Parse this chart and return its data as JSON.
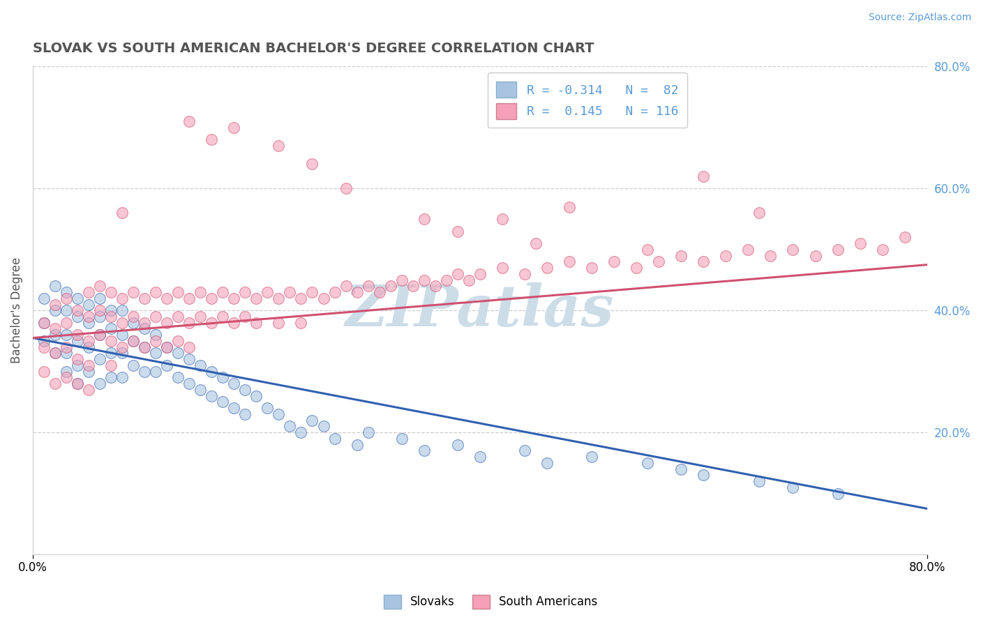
{
  "title": "SLOVAK VS SOUTH AMERICAN BACHELOR'S DEGREE CORRELATION CHART",
  "source": "Source: ZipAtlas.com",
  "ylabel": "Bachelor's Degree",
  "xlim": [
    0.0,
    0.8
  ],
  "ylim": [
    0.0,
    0.8
  ],
  "yticks_right": [
    0.2,
    0.4,
    0.6,
    0.8
  ],
  "ytick_right_labels": [
    "20.0%",
    "40.0%",
    "60.0%",
    "80.0%"
  ],
  "r_slovak": -0.314,
  "n_slovak": 82,
  "r_sa": 0.145,
  "n_sa": 116,
  "color_slovak": "#a8c4e0",
  "color_south_american": "#f4a0b8",
  "color_line_slovak": "#3060b0",
  "color_line_sa": "#d05070",
  "watermark": "ZIPatlas",
  "watermark_color": "#ccdde8",
  "grid_color": "#cccccc",
  "title_color": "#555555",
  "label_color": "#5b9bd5",
  "source_color": "#5b9bd5",
  "sk_x": [
    0.01,
    0.01,
    0.01,
    0.02,
    0.02,
    0.02,
    0.02,
    0.03,
    0.03,
    0.03,
    0.03,
    0.03,
    0.04,
    0.04,
    0.04,
    0.04,
    0.04,
    0.05,
    0.05,
    0.05,
    0.05,
    0.06,
    0.06,
    0.06,
    0.06,
    0.06,
    0.07,
    0.07,
    0.07,
    0.07,
    0.08,
    0.08,
    0.08,
    0.08,
    0.09,
    0.09,
    0.09,
    0.1,
    0.1,
    0.1,
    0.11,
    0.11,
    0.11,
    0.12,
    0.12,
    0.13,
    0.13,
    0.14,
    0.14,
    0.15,
    0.15,
    0.16,
    0.16,
    0.17,
    0.17,
    0.18,
    0.18,
    0.19,
    0.19,
    0.2,
    0.21,
    0.22,
    0.23,
    0.24,
    0.25,
    0.26,
    0.27,
    0.29,
    0.3,
    0.33,
    0.35,
    0.38,
    0.4,
    0.44,
    0.46,
    0.5,
    0.55,
    0.58,
    0.6,
    0.65,
    0.68,
    0.72
  ],
  "sk_y": [
    0.42,
    0.38,
    0.35,
    0.44,
    0.4,
    0.36,
    0.33,
    0.43,
    0.4,
    0.36,
    0.33,
    0.3,
    0.42,
    0.39,
    0.35,
    0.31,
    0.28,
    0.41,
    0.38,
    0.34,
    0.3,
    0.42,
    0.39,
    0.36,
    0.32,
    0.28,
    0.4,
    0.37,
    0.33,
    0.29,
    0.4,
    0.36,
    0.33,
    0.29,
    0.38,
    0.35,
    0.31,
    0.37,
    0.34,
    0.3,
    0.36,
    0.33,
    0.3,
    0.34,
    0.31,
    0.33,
    0.29,
    0.32,
    0.28,
    0.31,
    0.27,
    0.3,
    0.26,
    0.29,
    0.25,
    0.28,
    0.24,
    0.27,
    0.23,
    0.26,
    0.24,
    0.23,
    0.21,
    0.2,
    0.22,
    0.21,
    0.19,
    0.18,
    0.2,
    0.19,
    0.17,
    0.18,
    0.16,
    0.17,
    0.15,
    0.16,
    0.15,
    0.14,
    0.13,
    0.12,
    0.11,
    0.1
  ],
  "sa_x": [
    0.01,
    0.01,
    0.01,
    0.02,
    0.02,
    0.02,
    0.02,
    0.03,
    0.03,
    0.03,
    0.03,
    0.04,
    0.04,
    0.04,
    0.04,
    0.05,
    0.05,
    0.05,
    0.05,
    0.05,
    0.06,
    0.06,
    0.06,
    0.07,
    0.07,
    0.07,
    0.07,
    0.08,
    0.08,
    0.08,
    0.09,
    0.09,
    0.09,
    0.1,
    0.1,
    0.1,
    0.11,
    0.11,
    0.11,
    0.12,
    0.12,
    0.12,
    0.13,
    0.13,
    0.13,
    0.14,
    0.14,
    0.14,
    0.15,
    0.15,
    0.16,
    0.16,
    0.17,
    0.17,
    0.18,
    0.18,
    0.19,
    0.19,
    0.2,
    0.2,
    0.21,
    0.22,
    0.22,
    0.23,
    0.24,
    0.24,
    0.25,
    0.26,
    0.27,
    0.28,
    0.29,
    0.3,
    0.31,
    0.32,
    0.33,
    0.34,
    0.35,
    0.36,
    0.37,
    0.38,
    0.39,
    0.4,
    0.42,
    0.44,
    0.46,
    0.48,
    0.5,
    0.52,
    0.54,
    0.56,
    0.58,
    0.6,
    0.62,
    0.64,
    0.66,
    0.68,
    0.7,
    0.72,
    0.74,
    0.76,
    0.6,
    0.42,
    0.22,
    0.14,
    0.28,
    0.16,
    0.08,
    0.55,
    0.45,
    0.35,
    0.25,
    0.65,
    0.48,
    0.38,
    0.18,
    0.78
  ],
  "sa_y": [
    0.38,
    0.34,
    0.3,
    0.41,
    0.37,
    0.33,
    0.28,
    0.42,
    0.38,
    0.34,
    0.29,
    0.4,
    0.36,
    0.32,
    0.28,
    0.43,
    0.39,
    0.35,
    0.31,
    0.27,
    0.44,
    0.4,
    0.36,
    0.43,
    0.39,
    0.35,
    0.31,
    0.42,
    0.38,
    0.34,
    0.43,
    0.39,
    0.35,
    0.42,
    0.38,
    0.34,
    0.43,
    0.39,
    0.35,
    0.42,
    0.38,
    0.34,
    0.43,
    0.39,
    0.35,
    0.42,
    0.38,
    0.34,
    0.43,
    0.39,
    0.42,
    0.38,
    0.43,
    0.39,
    0.42,
    0.38,
    0.43,
    0.39,
    0.42,
    0.38,
    0.43,
    0.42,
    0.38,
    0.43,
    0.42,
    0.38,
    0.43,
    0.42,
    0.43,
    0.44,
    0.43,
    0.44,
    0.43,
    0.44,
    0.45,
    0.44,
    0.45,
    0.44,
    0.45,
    0.46,
    0.45,
    0.46,
    0.47,
    0.46,
    0.47,
    0.48,
    0.47,
    0.48,
    0.47,
    0.48,
    0.49,
    0.48,
    0.49,
    0.5,
    0.49,
    0.5,
    0.49,
    0.5,
    0.51,
    0.5,
    0.62,
    0.55,
    0.67,
    0.71,
    0.6,
    0.68,
    0.56,
    0.5,
    0.51,
    0.55,
    0.64,
    0.56,
    0.57,
    0.53,
    0.7,
    0.52
  ],
  "sk_line_x0": 0.0,
  "sk_line_x1": 0.8,
  "sk_line_y0": 0.355,
  "sk_line_y1": 0.075,
  "sa_line_x0": 0.0,
  "sa_line_x1": 0.8,
  "sa_line_y0": 0.355,
  "sa_line_y1": 0.475
}
